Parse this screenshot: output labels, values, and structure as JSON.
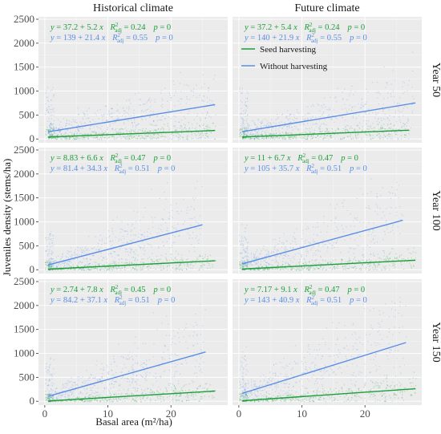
{
  "chart_data": {
    "type": "scatter",
    "xlabel": "Basal area (m²/ha)",
    "ylabel": "Juveniles density (stems/ha)",
    "xlim": [
      -1,
      29
    ],
    "ylim": [
      -80,
      2550
    ],
    "xticks": [
      0,
      10,
      20
    ],
    "yticks": [
      0,
      500,
      1000,
      1500,
      2000,
      2500
    ],
    "columns": [
      "Historical climate",
      "Future climate"
    ],
    "rows": [
      "Year 50",
      "Year 100",
      "Year 150"
    ],
    "legend": {
      "placement": "inside top-right panel",
      "entries": [
        {
          "label": "Seed harvesting",
          "color": "#1b9e3a"
        },
        {
          "label": "Without harvesting",
          "color": "#5b8ee6"
        }
      ]
    },
    "colors": {
      "seed": "#1b9e3a",
      "without": "#5b8ee6",
      "panel_bg": "#ebebeb"
    },
    "panels": [
      {
        "row": "Year 50",
        "column": "Historical climate",
        "seed": {
          "intercept": 37.2,
          "slope": 5.2,
          "x_range": [
            0.5,
            27
          ],
          "equation": "y = 37.2 + 5.2 x",
          "r2": "0.24",
          "p": "0"
        },
        "without": {
          "intercept": 139,
          "slope": 21.4,
          "x_range": [
            0.5,
            27
          ],
          "equation": "y = 139 + 21.4 x",
          "r2": "0.55",
          "p": "0"
        }
      },
      {
        "row": "Year 50",
        "column": "Future climate",
        "seed": {
          "intercept": 37.2,
          "slope": 5.4,
          "x_range": [
            0.5,
            27
          ],
          "equation": "y = 37.2 + 5.4 x",
          "r2": "0.24",
          "p": "0"
        },
        "without": {
          "intercept": 140,
          "slope": 21.9,
          "x_range": [
            0.5,
            28
          ],
          "equation": "y = 140 + 21.9 x",
          "r2": "0.55",
          "p": "0"
        }
      },
      {
        "row": "Year 100",
        "column": "Historical climate",
        "seed": {
          "intercept": 8.83,
          "slope": 6.6,
          "x_range": [
            0.5,
            27
          ],
          "equation": "y = 8.83 + 6.6 x",
          "r2": "0.47",
          "p": "0"
        },
        "without": {
          "intercept": 81.4,
          "slope": 34.3,
          "x_range": [
            0.5,
            25
          ],
          "equation": "y = 81.4 + 34.3 x",
          "r2": "0.51",
          "p": "0"
        }
      },
      {
        "row": "Year 100",
        "column": "Future climate",
        "seed": {
          "intercept": 11,
          "slope": 6.7,
          "x_range": [
            0.5,
            28
          ],
          "equation": "y = 11 + 6.7 x",
          "r2": "0.47",
          "p": "0"
        },
        "without": {
          "intercept": 105,
          "slope": 35.7,
          "x_range": [
            0.5,
            26
          ],
          "equation": "y = 105 + 35.7 x",
          "r2": "0.51",
          "p": "0"
        }
      },
      {
        "row": "Year 150",
        "column": "Historical climate",
        "seed": {
          "intercept": 2.74,
          "slope": 7.8,
          "x_range": [
            0.5,
            27
          ],
          "equation": "y = 2.74 + 7.8 x",
          "r2": "0.45",
          "p": "0"
        },
        "without": {
          "intercept": 84.2,
          "slope": 37.1,
          "x_range": [
            0.5,
            25.5
          ],
          "equation": "y = 84.2 + 37.1 x",
          "r2": "0.51",
          "p": "0"
        }
      },
      {
        "row": "Year 150",
        "column": "Future climate",
        "seed": {
          "intercept": 7.17,
          "slope": 9.1,
          "x_range": [
            0.5,
            28
          ],
          "equation": "y = 7.17 + 9.1 x",
          "r2": "0.47",
          "p": "0"
        },
        "without": {
          "intercept": 143,
          "slope": 40.9,
          "x_range": [
            0.5,
            26.5
          ],
          "equation": "y = 143 + 40.9 x",
          "r2": "0.51",
          "p": "0"
        }
      }
    ]
  }
}
